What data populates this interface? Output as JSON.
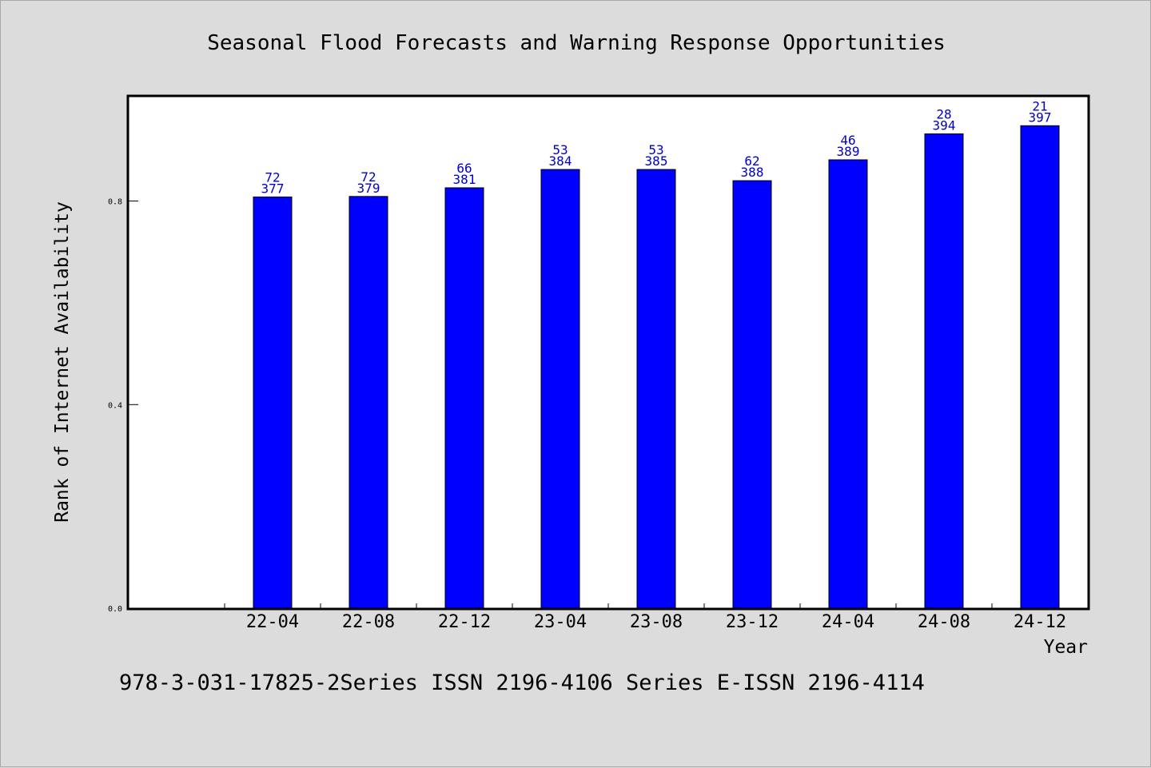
{
  "chart_data": {
    "type": "bar",
    "title": "Seasonal Flood Forecasts and Warning Response Opportunities",
    "xlabel": "Year",
    "ylabel": "Rank of Internet Availability",
    "ylim": [
      0.0,
      1.005
    ],
    "yticks": [
      "0.0",
      "0.4",
      "0.8"
    ],
    "ytick_values": [
      0.0,
      0.4,
      0.8
    ],
    "categories": [
      "22-04",
      "22-08",
      "22-12",
      "23-04",
      "23-08",
      "23-12",
      "24-04",
      "24-08",
      "24-12"
    ],
    "values": [
      0.808,
      0.809,
      0.826,
      0.862,
      0.862,
      0.84,
      0.881,
      0.932,
      0.948
    ],
    "label_top": [
      "72",
      "72",
      "66",
      "53",
      "53",
      "62",
      "46",
      "28",
      "21"
    ],
    "label_bottom": [
      "377",
      "379",
      "381",
      "384",
      "385",
      "388",
      "389",
      "394",
      "397"
    ],
    "bar_color": "#0000ff",
    "label_color": "#0000cc",
    "grid": false,
    "legend": "none"
  },
  "footer": {
    "text": "978-3-031-17825-2Series ISSN 2196-4106 Series E-ISSN 2196-4114"
  }
}
